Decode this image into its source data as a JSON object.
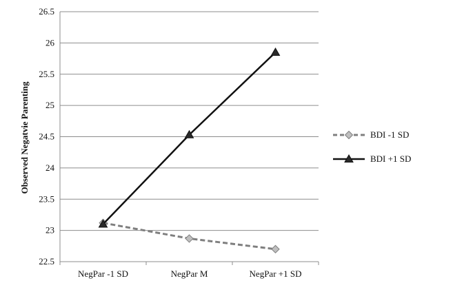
{
  "chart_data": {
    "type": "line",
    "title": "",
    "xlabel": "",
    "ylabel": "Observed Negatvie Parenting",
    "categories": [
      "NegPar -1 SD",
      "NegPar M",
      "NegPar +1 SD"
    ],
    "ylim": [
      22.5,
      26.5
    ],
    "yticks": [
      22.5,
      23,
      23.5,
      24,
      24.5,
      25,
      25.5,
      26,
      26.5
    ],
    "ytick_labels": [
      "22.5",
      "23",
      "23.5",
      "24",
      "24.5",
      "25",
      "25.5",
      "26",
      "26.5"
    ],
    "grid": true,
    "legend": "right",
    "series": [
      {
        "name": "BDI -1 SD",
        "values": [
          23.12,
          22.87,
          22.7
        ],
        "color": "#7f7f7f",
        "marker": "diamond",
        "line_style": "dashed",
        "marker_fill": "#bfbfbf"
      },
      {
        "name": "BDI +1 SD",
        "values": [
          23.1,
          24.53,
          25.85
        ],
        "color": "#111111",
        "marker": "triangle",
        "line_style": "solid",
        "marker_fill": "#2a2a2a"
      }
    ]
  }
}
